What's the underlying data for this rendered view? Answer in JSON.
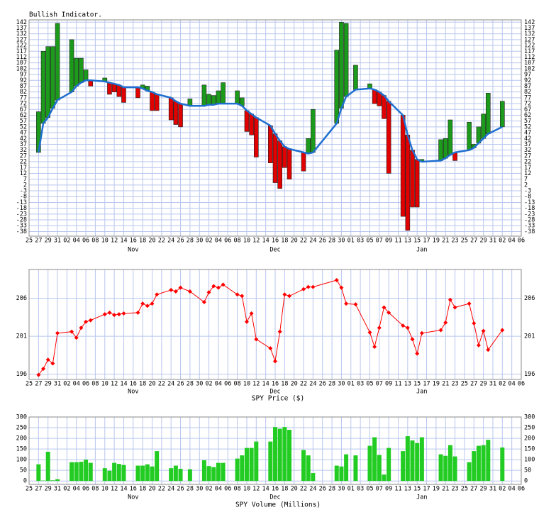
{
  "chart_data": [
    {
      "type": "indicator",
      "title": "Bullish Indicator.",
      "x": [
        2,
        3,
        4,
        5,
        6,
        9,
        10,
        11,
        12,
        13,
        16,
        17,
        18,
        19,
        20,
        23,
        24,
        25,
        26,
        27,
        30,
        31,
        32,
        34,
        37,
        38,
        39,
        40,
        41,
        44,
        45,
        46,
        47,
        48,
        51,
        52,
        53,
        54,
        55,
        58,
        59,
        60,
        65,
        66,
        67,
        69,
        72,
        73,
        74,
        75,
        76,
        79,
        80,
        81,
        82,
        83,
        87,
        88,
        89,
        90,
        93,
        94,
        95,
        96,
        97,
        100
      ],
      "xlim": [
        0,
        104
      ],
      "xticks": [
        {
          "value": 0,
          "label": "25"
        },
        {
          "value": 2,
          "label": "27"
        },
        {
          "value": 4,
          "label": "29"
        },
        {
          "value": 6,
          "label": "31"
        },
        {
          "value": 8,
          "label": "02"
        },
        {
          "value": 10,
          "label": "04"
        },
        {
          "value": 12,
          "label": "06"
        },
        {
          "value": 14,
          "label": "08"
        },
        {
          "value": 16,
          "label": "10"
        },
        {
          "value": 18,
          "label": "12"
        },
        {
          "value": 20,
          "label": "14"
        },
        {
          "value": 22,
          "label": "16"
        },
        {
          "value": 24,
          "label": "18"
        },
        {
          "value": 26,
          "label": "20"
        },
        {
          "value": 28,
          "label": "22"
        },
        {
          "value": 30,
          "label": "24"
        },
        {
          "value": 32,
          "label": "26"
        },
        {
          "value": 34,
          "label": "28"
        },
        {
          "value": 36,
          "label": "30"
        },
        {
          "value": 38,
          "label": "02"
        },
        {
          "value": 40,
          "label": "04"
        },
        {
          "value": 42,
          "label": "06"
        },
        {
          "value": 44,
          "label": "08"
        },
        {
          "value": 46,
          "label": "10"
        },
        {
          "value": 48,
          "label": "12"
        },
        {
          "value": 50,
          "label": "14"
        },
        {
          "value": 52,
          "label": "16"
        },
        {
          "value": 54,
          "label": "18"
        },
        {
          "value": 56,
          "label": "20"
        },
        {
          "value": 58,
          "label": "22"
        },
        {
          "value": 60,
          "label": "24"
        },
        {
          "value": 62,
          "label": "26"
        },
        {
          "value": 64,
          "label": "28"
        },
        {
          "value": 66,
          "label": "30"
        },
        {
          "value": 68,
          "label": "01"
        },
        {
          "value": 70,
          "label": "03"
        },
        {
          "value": 72,
          "label": "05"
        },
        {
          "value": 74,
          "label": "07"
        },
        {
          "value": 76,
          "label": "09"
        },
        {
          "value": 78,
          "label": "11"
        },
        {
          "value": 80,
          "label": "13"
        },
        {
          "value": 82,
          "label": "15"
        },
        {
          "value": 84,
          "label": "17"
        },
        {
          "value": 86,
          "label": "19"
        },
        {
          "value": 88,
          "label": "21"
        },
        {
          "value": 90,
          "label": "23"
        },
        {
          "value": 92,
          "label": "25"
        },
        {
          "value": 94,
          "label": "27"
        },
        {
          "value": 96,
          "label": "29"
        },
        {
          "value": 98,
          "label": "31"
        },
        {
          "value": 100,
          "label": "02"
        },
        {
          "value": 102,
          "label": "04"
        },
        {
          "value": 104,
          "label": "06"
        }
      ],
      "month_ticks": [
        {
          "value": 22,
          "label": "Nov"
        },
        {
          "value": 52,
          "label": "Dec"
        },
        {
          "value": 83,
          "label": "Jan"
        }
      ],
      "values": [
        65,
        117,
        121,
        121,
        141,
        127,
        111,
        111,
        101,
        87,
        94,
        80,
        82,
        78,
        73,
        77,
        88,
        87,
        66,
        66,
        58,
        54,
        52,
        76,
        88,
        80,
        79,
        83,
        90,
        83,
        77,
        48,
        45,
        26,
        21,
        4,
        -1,
        17,
        7,
        14,
        42,
        67,
        118,
        142,
        141,
        105,
        89,
        72,
        70,
        59,
        12,
        -25,
        -37,
        -17,
        -17,
        24,
        41,
        42,
        58,
        23,
        56,
        37,
        52,
        63,
        81,
        74
      ],
      "average": [
        30,
        55,
        60,
        68,
        75,
        82,
        87,
        90,
        92,
        92,
        91,
        90,
        89,
        88,
        86,
        86,
        85,
        83,
        82,
        80,
        77,
        74,
        72,
        70,
        70,
        71,
        71,
        72,
        72,
        72,
        70,
        66,
        63,
        60,
        53,
        46,
        40,
        35,
        33,
        30,
        29,
        30,
        55,
        68,
        78,
        84,
        85,
        84,
        82,
        79,
        74,
        62,
        45,
        32,
        24,
        22,
        23,
        25,
        28,
        30,
        32,
        34,
        38,
        42,
        46,
        52
      ],
      "up_color": "#1c9a1c",
      "down_color": "#e00000",
      "line_color": "#1f6fd0",
      "ylim": [
        -42,
        144
      ],
      "yticks": [
        -38,
        -33,
        -28,
        -23,
        -18,
        -13,
        -8,
        -3,
        2,
        7,
        12,
        17,
        22,
        27,
        32,
        37,
        42,
        47,
        52,
        57,
        62,
        67,
        72,
        77,
        82,
        87,
        92,
        97,
        102,
        107,
        112,
        117,
        122,
        127,
        132,
        137,
        142
      ],
      "grid": true
    },
    {
      "type": "line",
      "title": "SPY Price ($)",
      "values": [
        195.9,
        196.7,
        197.9,
        197.4,
        201.4,
        201.6,
        200.8,
        202.1,
        202.9,
        203.1,
        203.9,
        204.1,
        203.8,
        203.9,
        204.0,
        204.1,
        205.3,
        205.0,
        205.3,
        206.5,
        207.1,
        206.9,
        207.4,
        206.9,
        205.5,
        206.8,
        207.6,
        207.4,
        207.8,
        206.5,
        206.3,
        202.9,
        204.0,
        200.6,
        199.4,
        197.7,
        201.6,
        206.5,
        206.3,
        207.2,
        207.5,
        207.5,
        208.4,
        207.4,
        205.3,
        205.2,
        201.5,
        199.6,
        202.1,
        204.8,
        204.1,
        202.4,
        202.1,
        200.6,
        198.7,
        201.4,
        201.8,
        202.8,
        205.8,
        204.8,
        205.3,
        202.7,
        199.8,
        201.7,
        199.2,
        201.8
      ],
      "color": "#ff0000",
      "ylim": [
        195.3,
        209.8
      ],
      "yticks": [
        196,
        201,
        206
      ],
      "grid": true
    },
    {
      "type": "bar",
      "title": "SPY Volume (Millions)",
      "values": [
        78,
        2,
        137,
        3,
        8,
        88,
        88,
        90,
        100,
        85,
        60,
        48,
        85,
        80,
        75,
        72,
        72,
        78,
        68,
        140,
        60,
        72,
        57,
        55,
        97,
        70,
        65,
        85,
        85,
        105,
        120,
        155,
        155,
        185,
        185,
        253,
        245,
        253,
        240,
        145,
        120,
        37,
        72,
        68,
        125,
        120,
        165,
        205,
        122,
        30,
        155,
        140,
        210,
        190,
        178,
        205,
        125,
        118,
        168,
        115,
        88,
        140,
        165,
        168,
        193,
        157
      ],
      "color": "#22cc22",
      "ylim": [
        -16,
        300
      ],
      "yticks": [
        0,
        50,
        100,
        150,
        200,
        250,
        300
      ],
      "grid": true
    }
  ]
}
